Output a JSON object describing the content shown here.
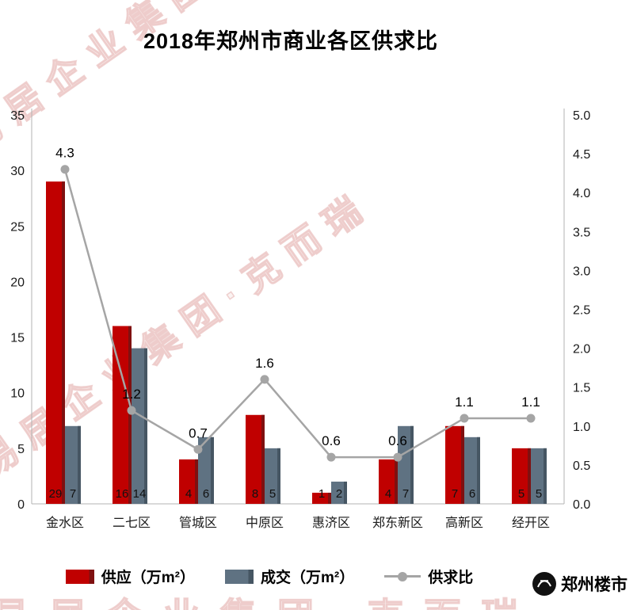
{
  "title": "2018年郑州市商业各区供求比",
  "watermark": "易居企业集团·克而瑞",
  "footer": {
    "brand": "郑州楼市"
  },
  "legend": [
    {
      "label": "供应（万m²）",
      "type": "bar",
      "color": "#c00000",
      "edge": "#7f1010"
    },
    {
      "label": "成交（万m²）",
      "type": "bar",
      "color": "#5f7282",
      "edge": "#465663"
    },
    {
      "label": "供求比",
      "type": "line",
      "color": "#a5a5a5"
    }
  ],
  "chart_data": {
    "type": "combo-bar-line",
    "title": "2018年郑州市商业各区供求比",
    "categories": [
      "金水区",
      "二七区",
      "管城区",
      "中原区",
      "惠济区",
      "郑东新区",
      "高新区",
      "经开区"
    ],
    "series": [
      {
        "name": "供应（万m²）",
        "type": "bar",
        "axis": "left",
        "color": "#c00000",
        "edge_color": "#7f1010",
        "values": [
          29,
          16,
          4,
          8,
          1,
          4,
          7,
          5
        ],
        "value_labels": [
          "29",
          "16",
          "4",
          "8",
          "1",
          "4",
          "7",
          "5"
        ]
      },
      {
        "name": "成交（万m²）",
        "type": "bar",
        "axis": "left",
        "color": "#5f7282",
        "edge_color": "#465663",
        "values": [
          7,
          14,
          6,
          5,
          2,
          7,
          6,
          5
        ],
        "value_labels": [
          "7",
          "14",
          "6",
          "5",
          "2",
          "7",
          "6",
          "5"
        ]
      },
      {
        "name": "供求比",
        "type": "line",
        "axis": "right",
        "color": "#a5a5a5",
        "values": [
          4.3,
          1.2,
          0.7,
          1.6,
          0.6,
          0.6,
          1.1,
          1.1
        ],
        "value_labels": [
          "4.3",
          "1.2",
          "0.7",
          "1.6",
          "0.6",
          "0.6",
          "1.1",
          "1.1"
        ]
      }
    ],
    "left_axis": {
      "min": 0,
      "max": 35,
      "step": 5,
      "ticks": [
        "0",
        "5",
        "10",
        "15",
        "20",
        "25",
        "30",
        "35"
      ]
    },
    "right_axis": {
      "min": 0,
      "max": 5,
      "step": 0.5,
      "ticks": [
        "0.0",
        "0.5",
        "1.0",
        "1.5",
        "2.0",
        "2.5",
        "3.0",
        "3.5",
        "4.0",
        "4.5",
        "5.0"
      ]
    },
    "grid": false,
    "legend_position": "bottom"
  }
}
